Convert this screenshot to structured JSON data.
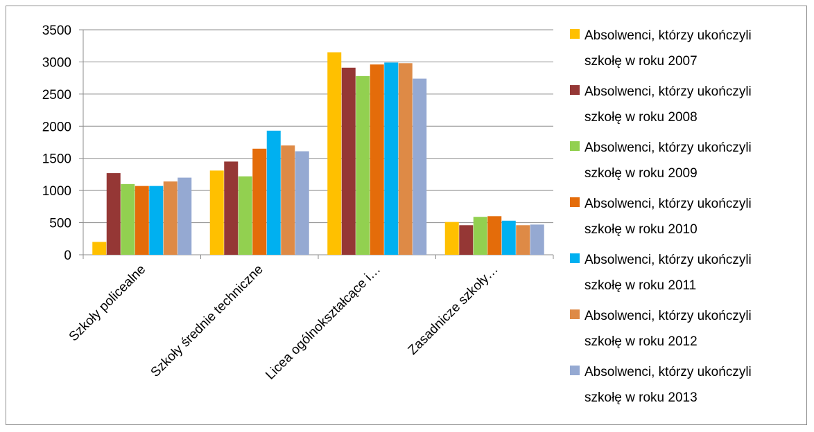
{
  "chart_data": {
    "type": "bar",
    "categories": [
      "Szkoły policealne",
      "Szkoły średnie techniczne",
      "Licea ogólnokształcące i…",
      "Zasadnicze szkoły…"
    ],
    "series": [
      {
        "name": "Absolwenci, którzy ukończyli szkołę w roku 2007",
        "name_lines": [
          "Absolwenci, którzy ukończyli",
          "szkołę w roku 2007"
        ],
        "color": "#FFC000",
        "values": [
          200,
          1310,
          3150,
          510
        ]
      },
      {
        "name": "Absolwenci, którzy ukończyli szkołę w roku 2008",
        "name_lines": [
          "Absolwenci, którzy ukończyli",
          "szkołę w roku 2008"
        ],
        "color": "#953735",
        "values": [
          1270,
          1450,
          2910,
          460
        ]
      },
      {
        "name": "Absolwenci, którzy ukończyli szkołę w roku 2009",
        "name_lines": [
          "Absolwenci, którzy ukończyli",
          "szkołę w roku 2009"
        ],
        "color": "#92D050",
        "values": [
          1100,
          1220,
          2780,
          590
        ]
      },
      {
        "name": "Absolwenci, którzy ukończyli szkołę w roku 2010",
        "name_lines": [
          "Absolwenci, którzy ukończyli",
          "szkołę w roku 2010"
        ],
        "color": "#E46C0A",
        "values": [
          1070,
          1650,
          2960,
          600
        ]
      },
      {
        "name": "Absolwenci, którzy ukończyli szkołę w roku 2011",
        "name_lines": [
          "Absolwenci, którzy ukończyli",
          "szkołę w roku 2011"
        ],
        "color": "#00B0F0",
        "values": [
          1070,
          1930,
          2990,
          530
        ]
      },
      {
        "name": "Absolwenci, którzy ukończyli szkołę w roku 2012",
        "name_lines": [
          "Absolwenci, którzy ukończyli",
          "szkołę w roku 2012"
        ],
        "color": "#DE8A46",
        "values": [
          1140,
          1700,
          2980,
          460
        ]
      },
      {
        "name": "Absolwenci, którzy ukończyli szkołę w roku 2013",
        "name_lines": [
          "Absolwenci, którzy ukończyli",
          "szkołę w roku 2013"
        ],
        "color": "#95A9D2",
        "values": [
          1200,
          1610,
          2740,
          470
        ]
      }
    ],
    "y_ticks": [
      "0",
      "500",
      "1000",
      "1500",
      "2000",
      "2500",
      "3000",
      "3500"
    ],
    "ylim": [
      0,
      3500
    ],
    "grid": true,
    "legend_position": "right"
  }
}
